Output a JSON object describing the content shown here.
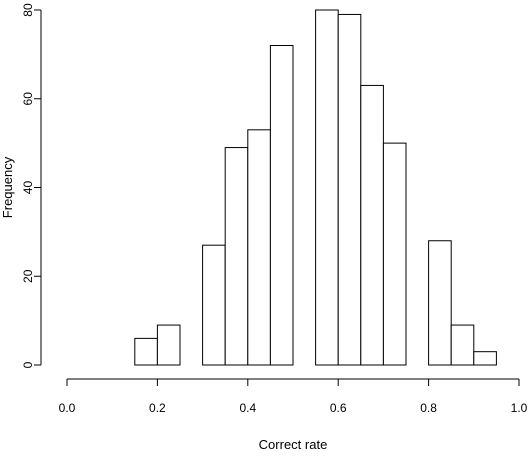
{
  "chart_data": {
    "type": "bar",
    "subtype": "histogram",
    "title": "",
    "xlabel": "Correct rate",
    "ylabel": "Frequency",
    "xlim": [
      0.0,
      1.0
    ],
    "ylim": [
      0,
      80
    ],
    "grid": false,
    "x_ticks": [
      "0.0",
      "0.2",
      "0.4",
      "0.6",
      "0.8",
      "1.0"
    ],
    "y_ticks": [
      "0",
      "20",
      "40",
      "60",
      "80"
    ],
    "bins": [
      {
        "start": 0.15,
        "end": 0.2,
        "count": 6
      },
      {
        "start": 0.2,
        "end": 0.25,
        "count": 9
      },
      {
        "start": 0.25,
        "end": 0.3,
        "count": 0
      },
      {
        "start": 0.3,
        "end": 0.35,
        "count": 27
      },
      {
        "start": 0.35,
        "end": 0.4,
        "count": 49
      },
      {
        "start": 0.4,
        "end": 0.45,
        "count": 53
      },
      {
        "start": 0.45,
        "end": 0.5,
        "count": 72
      },
      {
        "start": 0.5,
        "end": 0.55,
        "count": 0
      },
      {
        "start": 0.55,
        "end": 0.6,
        "count": 80
      },
      {
        "start": 0.6,
        "end": 0.65,
        "count": 79
      },
      {
        "start": 0.65,
        "end": 0.7,
        "count": 63
      },
      {
        "start": 0.7,
        "end": 0.75,
        "count": 50
      },
      {
        "start": 0.75,
        "end": 0.8,
        "count": 0
      },
      {
        "start": 0.8,
        "end": 0.85,
        "count": 28
      },
      {
        "start": 0.85,
        "end": 0.9,
        "count": 9
      },
      {
        "start": 0.9,
        "end": 0.95,
        "count": 3
      }
    ],
    "bar_fill": "#ffffff",
    "bar_stroke": "#000000"
  }
}
